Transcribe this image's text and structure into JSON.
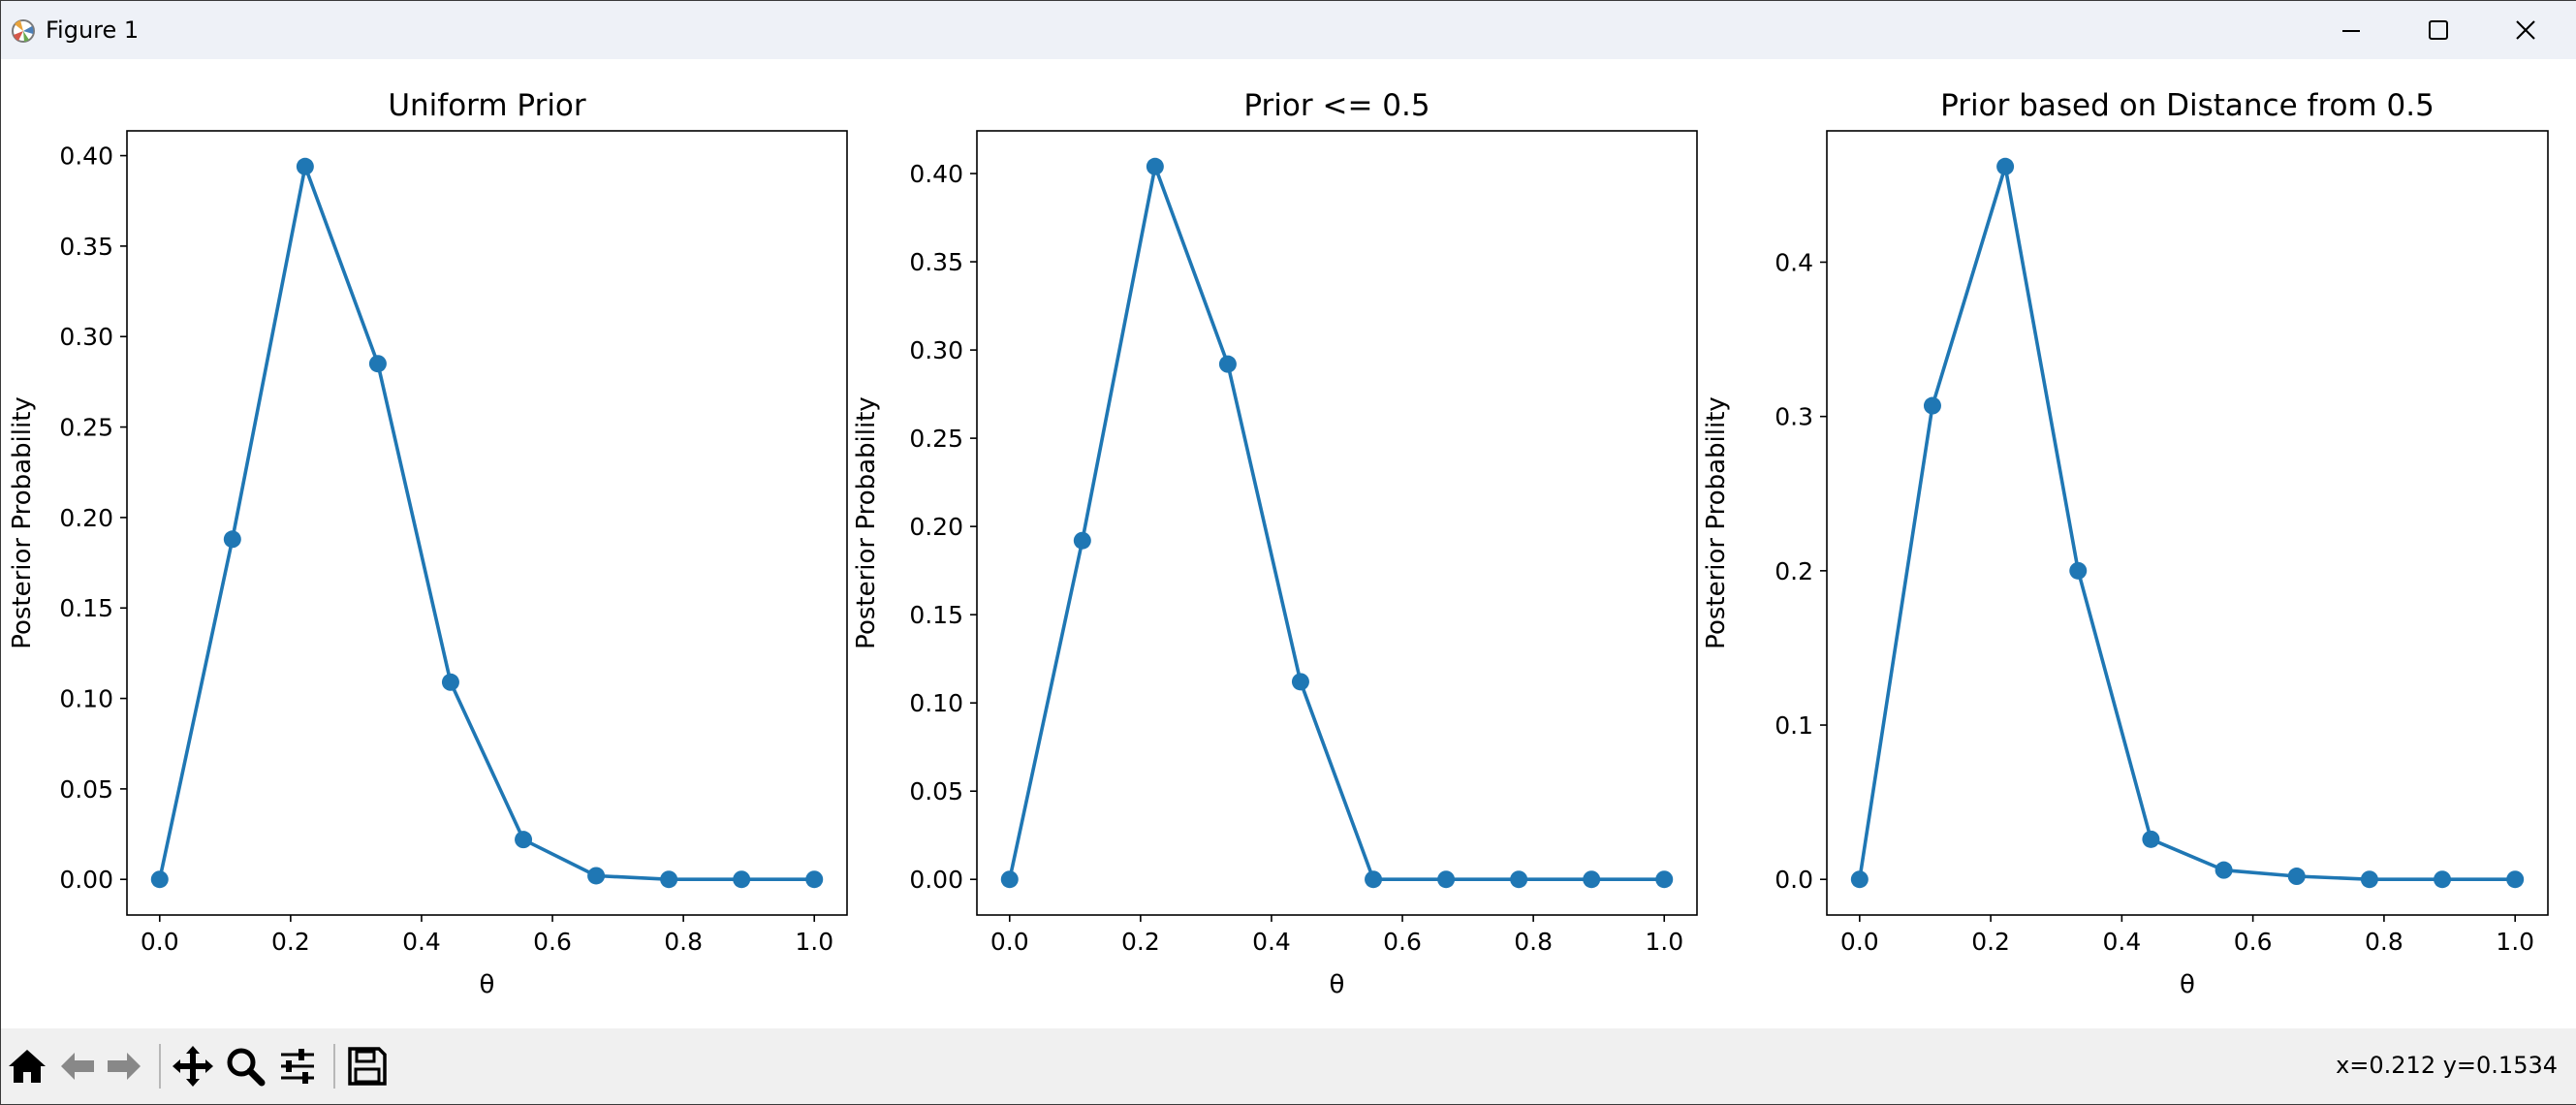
{
  "window": {
    "title": "Figure 1",
    "app_icon": "matplotlib-icon",
    "controls": [
      "minimize-icon",
      "maximize-icon",
      "close-icon"
    ]
  },
  "colors": {
    "series": "#1f77b4",
    "titlebar": "#eef1f7",
    "toolbar": "#f0f0f0"
  },
  "toolbar": {
    "buttons": [
      "home-icon",
      "back-icon",
      "forward-icon",
      "pan-icon",
      "zoom-icon",
      "subplots-icon",
      "save-icon"
    ],
    "coords": "x=0.212 y=0.1534"
  },
  "chart_data": [
    {
      "type": "line",
      "title": "Uniform Prior",
      "xlabel": "θ",
      "ylabel": "Posterior Probability",
      "x": [
        0.0,
        0.1111,
        0.2222,
        0.3333,
        0.4444,
        0.5556,
        0.6667,
        0.7778,
        0.8889,
        1.0
      ],
      "values": [
        0.0,
        0.188,
        0.394,
        0.285,
        0.109,
        0.022,
        0.002,
        0.0,
        0.0,
        0.0
      ],
      "xlim": [
        -0.05,
        1.05
      ],
      "ylim": [
        -0.0197,
        0.4137
      ],
      "xticks": [
        "0.0",
        "0.2",
        "0.4",
        "0.6",
        "0.8",
        "1.0"
      ],
      "yticks": [
        "0.00",
        "0.05",
        "0.10",
        "0.15",
        "0.20",
        "0.25",
        "0.30",
        "0.35",
        "0.40"
      ],
      "marker": "circle",
      "grid": false
    },
    {
      "type": "line",
      "title": "Prior <= 0.5",
      "xlabel": "θ",
      "ylabel": "Posterior Probability",
      "x": [
        0.0,
        0.1111,
        0.2222,
        0.3333,
        0.4444,
        0.5556,
        0.6667,
        0.7778,
        0.8889,
        1.0
      ],
      "values": [
        0.0,
        0.192,
        0.404,
        0.292,
        0.112,
        0.0,
        0.0,
        0.0,
        0.0,
        0.0
      ],
      "xlim": [
        -0.05,
        1.05
      ],
      "ylim": [
        -0.0202,
        0.4242
      ],
      "xticks": [
        "0.0",
        "0.2",
        "0.4",
        "0.6",
        "0.8",
        "1.0"
      ],
      "yticks": [
        "0.00",
        "0.05",
        "0.10",
        "0.15",
        "0.20",
        "0.25",
        "0.30",
        "0.35",
        "0.40"
      ],
      "marker": "circle",
      "grid": false
    },
    {
      "type": "line",
      "title": "Prior based on Distance from 0.5",
      "xlabel": "θ",
      "ylabel": "Posterior Probability",
      "x": [
        0.0,
        0.1111,
        0.2222,
        0.3333,
        0.4444,
        0.5556,
        0.6667,
        0.7778,
        0.8889,
        1.0
      ],
      "values": [
        0.0,
        0.307,
        0.462,
        0.2,
        0.026,
        0.006,
        0.002,
        0.0,
        0.0,
        0.0
      ],
      "xlim": [
        -0.05,
        1.05
      ],
      "ylim": [
        -0.0231,
        0.4851
      ],
      "xticks": [
        "0.0",
        "0.2",
        "0.4",
        "0.6",
        "0.8",
        "1.0"
      ],
      "yticks": [
        "0.0",
        "0.1",
        "0.2",
        "0.3",
        "0.4"
      ],
      "marker": "circle",
      "grid": false
    }
  ]
}
